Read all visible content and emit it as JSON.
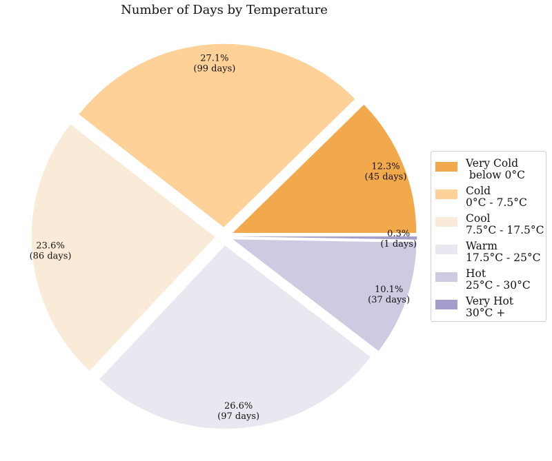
{
  "chart_data": {
    "type": "pie",
    "title": "Number of Days by Temperature",
    "slices": [
      {
        "name": "Very Cold\n below 0°C",
        "days": 45,
        "percent_label": "12.3%",
        "count_label": "(45 days)",
        "color": "#f2a94b"
      },
      {
        "name": "Cold\n0°C - 7.5°C",
        "days": 99,
        "percent_label": "27.1%",
        "count_label": "(99 days)",
        "color": "#fdd198"
      },
      {
        "name": "Cool\n7.5°C - 17.5°C",
        "days": 86,
        "percent_label": "23.6%",
        "count_label": "(86 days)",
        "color": "#faebd8"
      },
      {
        "name": "Warm\n17.5°C - 25°C",
        "days": 97,
        "percent_label": "26.6%",
        "count_label": "(97 days)",
        "color": "#e8e8f1"
      },
      {
        "name": "Hot\n25°C - 30°C",
        "days": 37,
        "percent_label": "10.1%",
        "count_label": "(37 days)",
        "color": "#cccbe2"
      },
      {
        "name": "Very Hot\n30°C +",
        "days": 1,
        "percent_label": "0.3%",
        "count_label": "(1 days)",
        "color": "#a49dcb"
      }
    ],
    "legend_position": "right"
  }
}
